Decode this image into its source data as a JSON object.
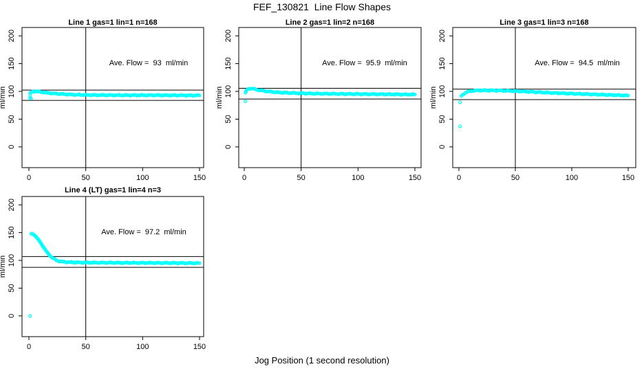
{
  "figure": {
    "title": "FEF_130821  Line Flow Shapes",
    "xlabel": "Jog Position (1 second resolution)",
    "ylabel": "ml/min",
    "point_color": "#00ffff",
    "axis_color": "#000000",
    "background": "#ffffff"
  },
  "chart_data": {
    "type": "scatter",
    "title": "FEF_130821  Line Flow Shapes",
    "xlabel": "Jog Position (1 second resolution)",
    "ylabel": "ml/min",
    "xticks": [
      0,
      50,
      100,
      150
    ],
    "yticks": [
      0,
      50,
      100,
      150,
      200
    ],
    "xlim": [
      0,
      150
    ],
    "ylim": [
      0,
      200
    ],
    "grid": false,
    "legend": "none",
    "marker": "open-circle-cyan",
    "panels": [
      {
        "title": "Line 1 gas=1 lin=1 n=168",
        "ave_label": "Ave. Flow =  93  ml/min",
        "ave_flow_ml_min": 93,
        "n": 168,
        "vline_x": 50,
        "hline_upper": 102.3,
        "hline_lower": 83.7,
        "curve_keypoints": [
          [
            1,
            96
          ],
          [
            3,
            99.5
          ],
          [
            6,
            100
          ],
          [
            10,
            99
          ],
          [
            15,
            97.5
          ],
          [
            20,
            96.5
          ],
          [
            30,
            95
          ],
          [
            40,
            94
          ],
          [
            55,
            93.3
          ],
          [
            80,
            93
          ],
          [
            110,
            93
          ],
          [
            150,
            92.7
          ]
        ],
        "outliers": [
          [
            1,
            92
          ],
          [
            1,
            88
          ],
          [
            2,
            87
          ]
        ]
      },
      {
        "title": "Line 2 gas=1 lin=2 n=168",
        "ave_label": "Ave. Flow =  95.9  ml/min",
        "ave_flow_ml_min": 95.9,
        "n": 168,
        "vline_x": 50,
        "hline_upper": 105.5,
        "hline_lower": 86.3,
        "curve_keypoints": [
          [
            1,
            97
          ],
          [
            2,
            102
          ],
          [
            4,
            105
          ],
          [
            7,
            105
          ],
          [
            12,
            102.5
          ],
          [
            20,
            100
          ],
          [
            30,
            98
          ],
          [
            45,
            96.8
          ],
          [
            60,
            96
          ],
          [
            90,
            95.3
          ],
          [
            120,
            94.8
          ],
          [
            150,
            94.3
          ]
        ],
        "outliers": [
          [
            1,
            82
          ]
        ]
      },
      {
        "title": "Line 3 gas=1 lin=3 n=168",
        "ave_label": "Ave. Flow =  94.5  ml/min",
        "ave_flow_ml_min": 94.5,
        "n": 168,
        "vline_x": 50,
        "hline_upper": 104.0,
        "hline_lower": 85.1,
        "curve_keypoints": [
          [
            2,
            91
          ],
          [
            4,
            95
          ],
          [
            7,
            99
          ],
          [
            12,
            101
          ],
          [
            20,
            101.8
          ],
          [
            35,
            101.5
          ],
          [
            50,
            100.5
          ],
          [
            65,
            99
          ],
          [
            80,
            97.5
          ],
          [
            95,
            96.3
          ],
          [
            110,
            95.2
          ],
          [
            130,
            93.8
          ],
          [
            150,
            92.5
          ]
        ],
        "outliers": [
          [
            1,
            80
          ],
          [
            1,
            37
          ]
        ]
      },
      {
        "title": "Line 4 (LT) gas=1 lin=4 n=3",
        "ave_label": "Ave. Flow =  97.2  ml/min",
        "ave_flow_ml_min": 97.2,
        "n": 3,
        "vline_x": 50,
        "hline_upper": 106.9,
        "hline_lower": 87.5,
        "curve_keypoints": [
          [
            2,
            147
          ],
          [
            3,
            148
          ],
          [
            5,
            145.5
          ],
          [
            7,
            141
          ],
          [
            9,
            135.5
          ],
          [
            11,
            129.5
          ],
          [
            13,
            123.5
          ],
          [
            15,
            117.5
          ],
          [
            17,
            112
          ],
          [
            19,
            107.5
          ],
          [
            21,
            104
          ],
          [
            23,
            101.5
          ],
          [
            25,
            99.5
          ],
          [
            28,
            98
          ],
          [
            32,
            97
          ],
          [
            38,
            96.5
          ],
          [
            50,
            96
          ],
          [
            70,
            95.8
          ],
          [
            100,
            95.5
          ],
          [
            125,
            95.3
          ],
          [
            150,
            95
          ]
        ],
        "outliers": [
          [
            1,
            0
          ]
        ]
      }
    ]
  }
}
